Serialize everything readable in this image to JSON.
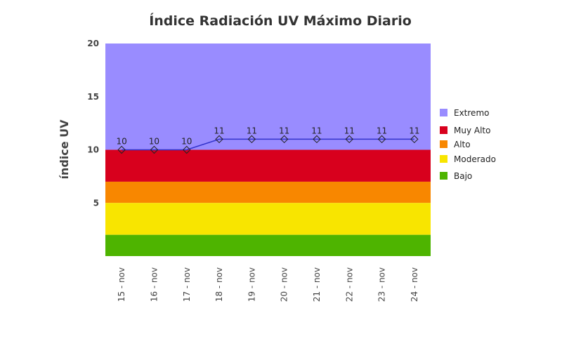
{
  "chart_data": {
    "type": "line",
    "title": "Índice Radiación UV Máximo Diario",
    "ylabel": "índice UV",
    "xlabel": "",
    "ylim": [
      0,
      20
    ],
    "yticks": [
      5,
      10,
      15,
      20
    ],
    "categories": [
      "15 - nov",
      "16 - nov",
      "17 - nov",
      "18 - nov",
      "19 - nov",
      "20 - nov",
      "21 - nov",
      "22 - nov",
      "23 - nov",
      "24 - nov"
    ],
    "series": [
      {
        "values": [
          10,
          10,
          10,
          11,
          11,
          11,
          11,
          11,
          11,
          11
        ],
        "color": "#3333cc"
      }
    ],
    "bands": [
      {
        "name": "Extremo",
        "from": 10,
        "to": 20,
        "color": "#998cff"
      },
      {
        "name": "Muy Alto",
        "from": 7,
        "to": 10,
        "color": "#d8001d"
      },
      {
        "name": "Alto",
        "from": 5,
        "to": 7,
        "color": "#f88700"
      },
      {
        "name": "Moderado",
        "from": 2,
        "to": 5,
        "color": "#f8e500"
      },
      {
        "name": "Bajo",
        "from": 0,
        "to": 2,
        "color": "#4eb400"
      }
    ],
    "legend_position": "right",
    "grid": false
  }
}
